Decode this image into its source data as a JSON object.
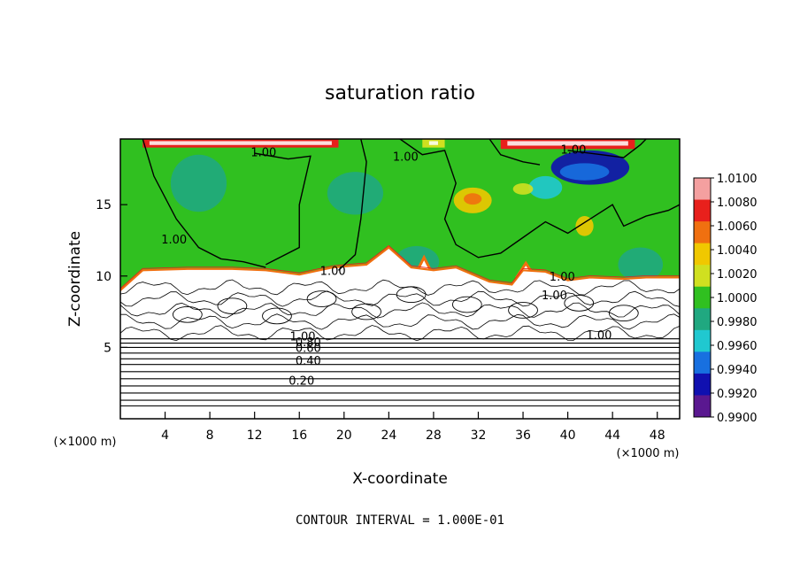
{
  "chart_data": {
    "type": "heatmap",
    "title": "saturation ratio",
    "xlabel": "X-coordinate",
    "ylabel": "Z-coordinate",
    "x_unit": "(×1000 m)",
    "y_unit": "(×1000 m)",
    "xlim": [
      0,
      50
    ],
    "ylim": [
      0,
      19.6
    ],
    "x_ticks": [
      4,
      8,
      12,
      16,
      20,
      24,
      28,
      32,
      36,
      40,
      44,
      48
    ],
    "y_ticks": [
      5,
      10,
      15
    ],
    "footer": "CONTOUR INTERVAL =  1.000E-01",
    "colorbar": {
      "levels": [
        "1.0100",
        "1.0080",
        "1.0060",
        "1.0040",
        "1.0020",
        "1.0000",
        "0.9980",
        "0.9960",
        "0.9940",
        "0.9920",
        "0.9900"
      ],
      "colors": [
        "#f4a0a0",
        "#e8201c",
        "#f07010",
        "#f0c800",
        "#d0e020",
        "#30c020",
        "#20a880",
        "#20c8d0",
        "#1870e0",
        "#1010b0",
        "#5a1890"
      ]
    },
    "contour_labels": [
      {
        "text": "1.00",
        "x": 12.8,
        "z": 18.6
      },
      {
        "text": "1.00",
        "x": 25.5,
        "z": 18.3
      },
      {
        "text": "1.00",
        "x": 40.5,
        "z": 18.8
      },
      {
        "text": "1.00",
        "x": 4.8,
        "z": 12.5
      },
      {
        "text": "1.00",
        "x": 19.0,
        "z": 10.3
      },
      {
        "text": "1.00",
        "x": 39.5,
        "z": 9.9
      },
      {
        "text": "1.00",
        "x": 38.8,
        "z": 8.6
      },
      {
        "text": "1.00",
        "x": 42.8,
        "z": 5.8
      },
      {
        "text": "1.00",
        "x": 16.3,
        "z": 5.7
      },
      {
        "text": "0.80",
        "x": 16.8,
        "z": 5.3
      },
      {
        "text": "0.60",
        "x": 16.8,
        "z": 4.9
      },
      {
        "text": "0.40",
        "x": 16.8,
        "z": 4.0
      },
      {
        "text": "0.20",
        "x": 16.2,
        "z": 2.6
      }
    ],
    "background_contours_z": [
      0.9,
      1.3,
      1.8,
      2.3,
      2.8,
      3.3,
      3.8,
      4.2,
      4.6,
      5.0,
      5.3,
      5.6
    ],
    "cloud_boundary": [
      [
        0,
        9.0
      ],
      [
        2,
        10.4
      ],
      [
        6,
        10.5
      ],
      [
        10,
        10.5
      ],
      [
        13,
        10.4
      ],
      [
        16,
        10.1
      ],
      [
        19,
        10.6
      ],
      [
        22,
        10.8
      ],
      [
        24,
        12.0
      ],
      [
        26,
        10.6
      ],
      [
        28,
        10.4
      ],
      [
        30,
        10.6
      ],
      [
        33,
        9.6
      ],
      [
        35,
        9.4
      ],
      [
        36,
        10.4
      ],
      [
        38,
        10.3
      ],
      [
        40,
        9.7
      ],
      [
        42,
        9.9
      ],
      [
        45,
        9.8
      ],
      [
        47,
        9.9
      ],
      [
        50,
        9.9
      ],
      [
        50,
        5.6
      ],
      [
        0,
        5.6
      ]
    ],
    "upper_bands": [
      {
        "x0": 2.0,
        "x1": 19.5,
        "z0": 19.0,
        "z1": 19.6,
        "level": "1.0080"
      },
      {
        "x0": 27.0,
        "x1": 29.0,
        "z0": 19.0,
        "z1": 19.6,
        "level": "1.0020"
      },
      {
        "x0": 34.0,
        "x1": 46.0,
        "z0": 18.9,
        "z1": 19.6,
        "level": "1.0080"
      }
    ],
    "blobs": [
      {
        "x": 42.0,
        "z": 17.6,
        "rx": 3.5,
        "rz": 1.2,
        "level": "0.9920"
      },
      {
        "x": 41.5,
        "z": 17.3,
        "rx": 2.2,
        "rz": 0.6,
        "level": "0.9940"
      },
      {
        "x": 38.0,
        "z": 16.2,
        "rx": 1.5,
        "rz": 0.8,
        "level": "0.9960"
      },
      {
        "x": 31.5,
        "z": 15.3,
        "rx": 1.7,
        "rz": 0.9,
        "level": "1.0040"
      },
      {
        "x": 31.5,
        "z": 15.4,
        "rx": 0.8,
        "rz": 0.4,
        "level": "1.0060"
      },
      {
        "x": 36.0,
        "z": 16.1,
        "rx": 0.9,
        "rz": 0.4,
        "level": "1.0020"
      },
      {
        "x": 41.5,
        "z": 13.5,
        "rx": 0.8,
        "rz": 0.7,
        "level": "1.0040"
      },
      {
        "x": 26.5,
        "z": 11.0,
        "rx": 2.0,
        "rz": 1.1,
        "level": "0.9980"
      },
      {
        "x": 46.5,
        "z": 10.8,
        "rx": 2.0,
        "rz": 1.2,
        "level": "0.9980"
      },
      {
        "x": 21.0,
        "z": 15.8,
        "rx": 2.5,
        "rz": 1.5,
        "level": "0.9980"
      },
      {
        "x": 7.0,
        "z": 16.5,
        "rx": 2.5,
        "rz": 2.0,
        "level": "0.9980"
      }
    ],
    "cloud_top_spikes": [
      {
        "x0": 22.3,
        "x1": 25.6,
        "peak": 12.0,
        "level": "1.0060"
      },
      {
        "x0": 26.3,
        "x1": 28.0,
        "peak": 11.3,
        "level": "1.0060"
      },
      {
        "x0": 35.5,
        "x1": 37.0,
        "peak": 10.9,
        "level": "1.0060"
      }
    ]
  }
}
